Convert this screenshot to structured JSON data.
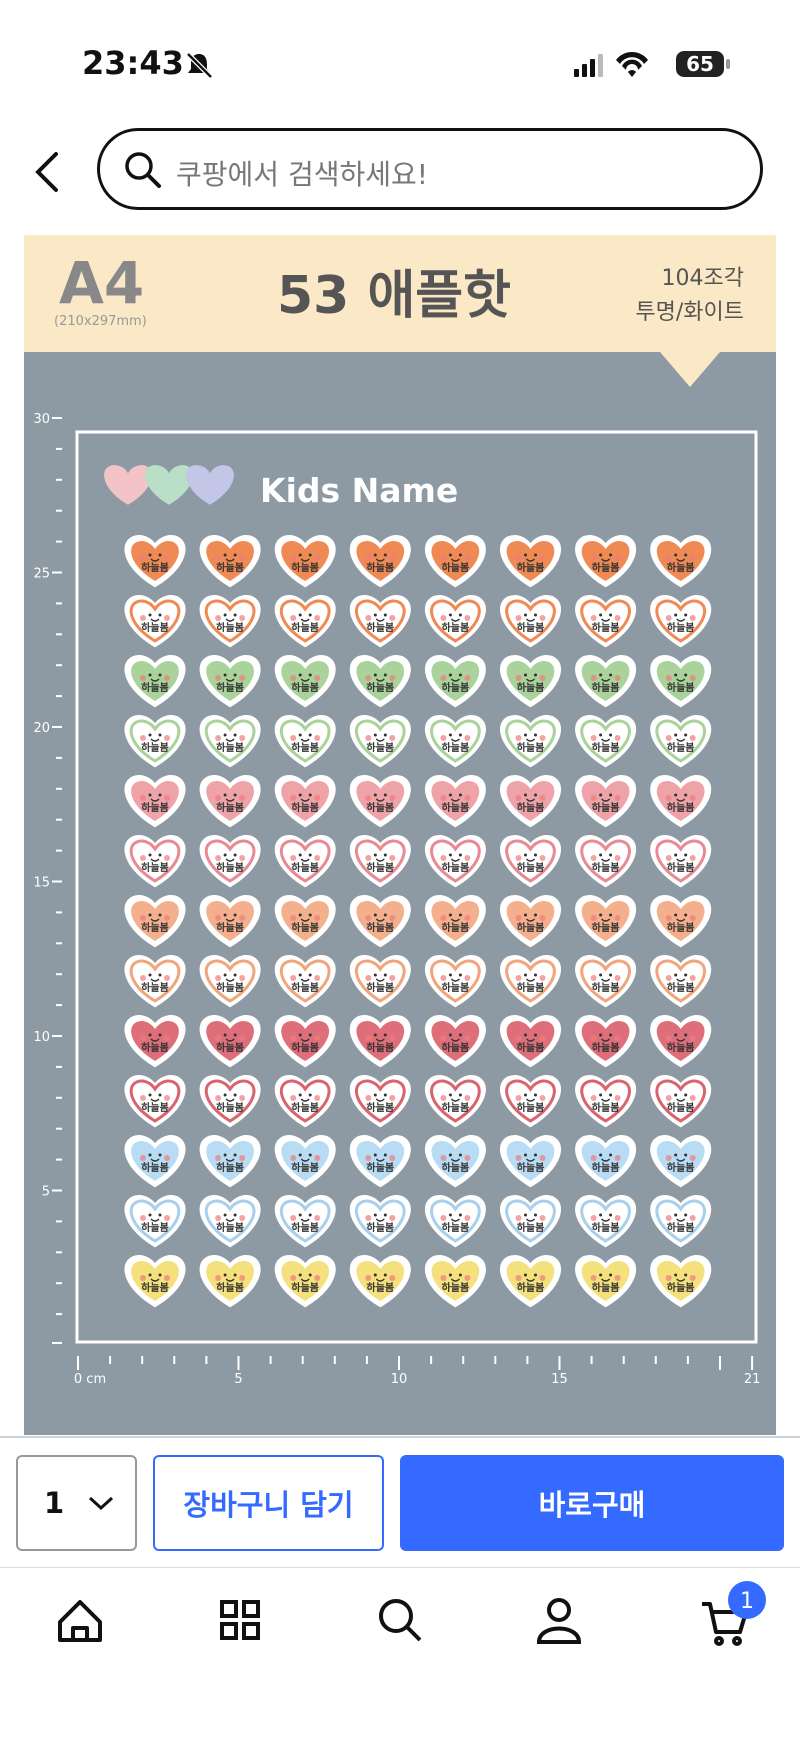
{
  "status_bar": {
    "time": "23:43",
    "battery": "65"
  },
  "search": {
    "placeholder": "쿠팡에서 검색하세요!"
  },
  "product_image": {
    "size": "A4",
    "size_detail": "(210x297mm)",
    "title": "53 애플핫",
    "pieces": "104조각",
    "material": "투명/화이트",
    "heading": "Kids Name",
    "sticker_text": "하늘봄",
    "ruler_y": [
      "30",
      "25",
      "20",
      "15",
      "10",
      "5"
    ],
    "ruler_x": [
      "0 cm",
      "5",
      "10",
      "15",
      "21"
    ],
    "rows": [
      {
        "color": "#ef8a55",
        "filled": true
      },
      {
        "color": "#ef8a55",
        "filled": false
      },
      {
        "color": "#a9d39a",
        "filled": true
      },
      {
        "color": "#a9d39a",
        "filled": false
      },
      {
        "color": "#eea3a8",
        "filled": true
      },
      {
        "color": "#e88a94",
        "filled": false
      },
      {
        "color": "#f4b08c",
        "filled": true
      },
      {
        "color": "#f0a67c",
        "filled": false
      },
      {
        "color": "#de6f7a",
        "filled": true
      },
      {
        "color": "#d9646f",
        "filled": false
      },
      {
        "color": "#b8dcf4",
        "filled": true
      },
      {
        "color": "#a8d0ec",
        "filled": false
      },
      {
        "color": "#f4e07c",
        "filled": true
      }
    ]
  },
  "purchase": {
    "quantity": "1",
    "cart": "장바구니 담기",
    "buy": "바로구매"
  },
  "nav": {
    "cart_badge": "1"
  }
}
